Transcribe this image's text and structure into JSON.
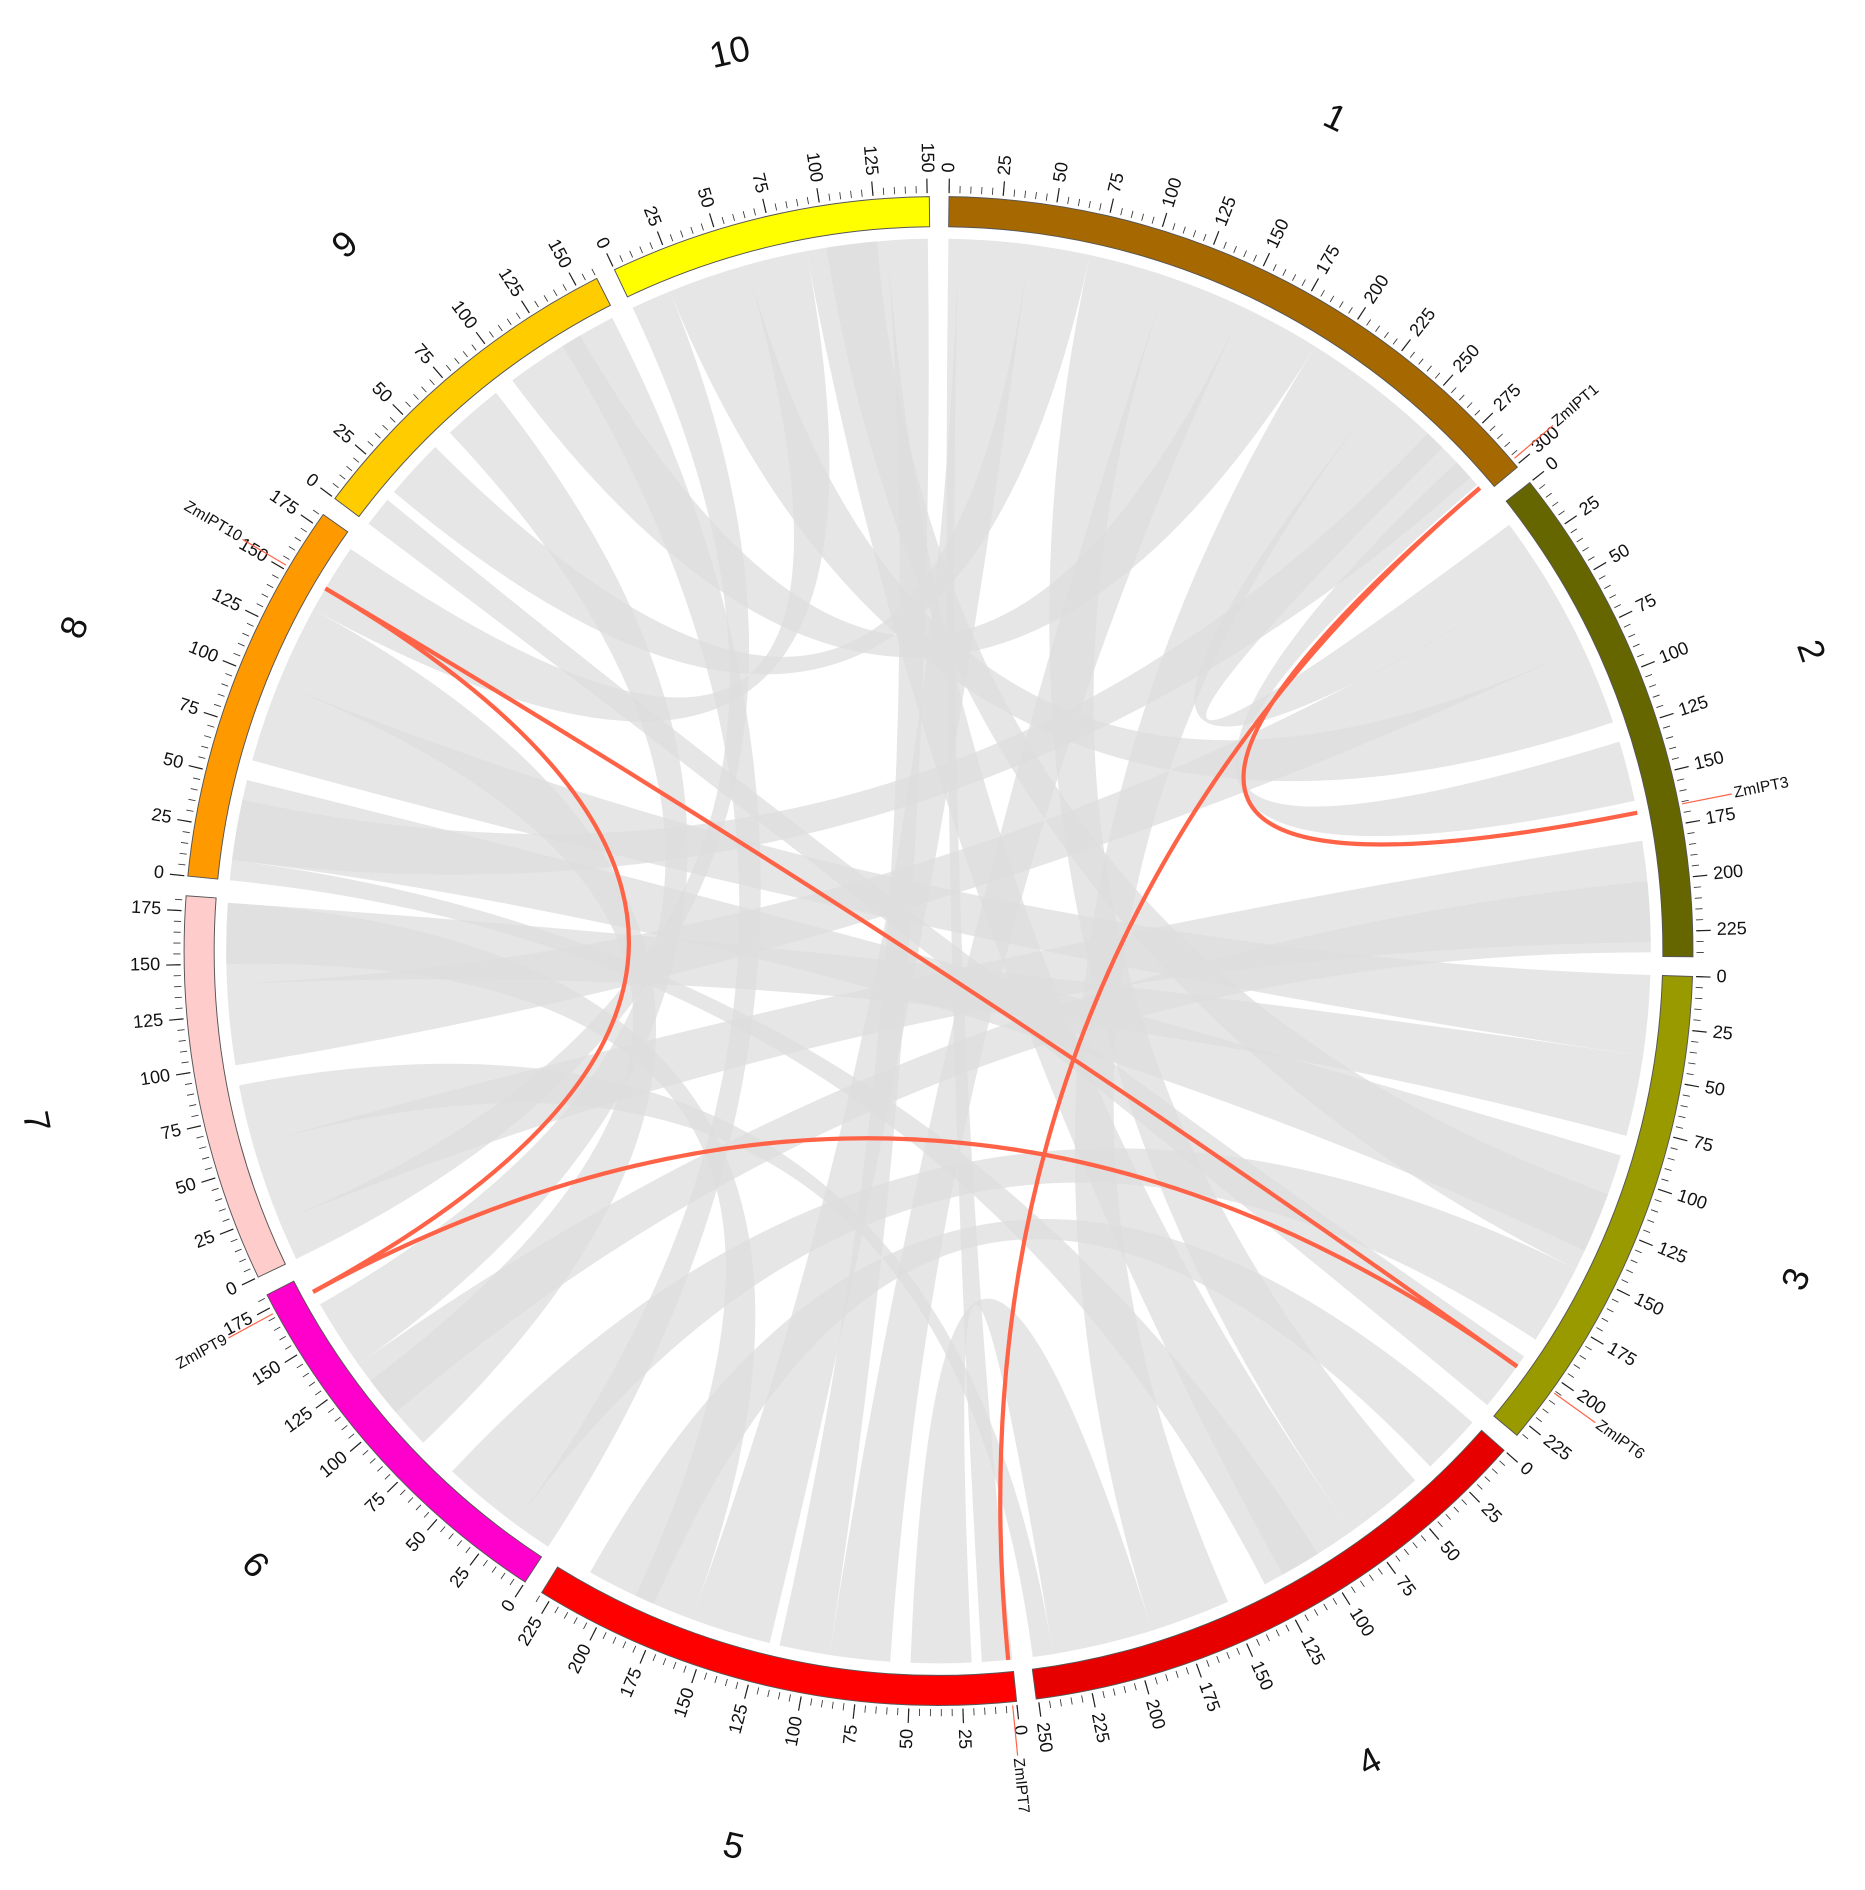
{
  "chart_data": {
    "type": "circos",
    "chromosomes": [
      {
        "name": "1",
        "length": 301,
        "color": "#a66800",
        "ticks": [
          0,
          25,
          50,
          75,
          100,
          125,
          150,
          175,
          200,
          225,
          250,
          275,
          300
        ]
      },
      {
        "name": "2",
        "length": 237,
        "color": "#666600",
        "ticks": [
          0,
          25,
          50,
          75,
          100,
          125,
          150,
          175,
          200,
          225
        ]
      },
      {
        "name": "3",
        "length": 232,
        "color": "#999900",
        "ticks": [
          0,
          25,
          50,
          75,
          100,
          125,
          150,
          175,
          200,
          225
        ]
      },
      {
        "name": "4",
        "length": 251,
        "color": "#e60000",
        "ticks": [
          0,
          25,
          50,
          75,
          100,
          125,
          150,
          175,
          200,
          225,
          250
        ]
      },
      {
        "name": "5",
        "length": 230,
        "color": "#ff0000",
        "ticks": [
          0,
          25,
          50,
          75,
          100,
          125,
          150,
          175,
          200,
          225
        ]
      },
      {
        "name": "6",
        "length": 181,
        "color": "#ff00cc",
        "ticks": [
          0,
          25,
          50,
          75,
          100,
          125,
          150,
          175
        ]
      },
      {
        "name": "7",
        "length": 182,
        "color": "#ffcccc",
        "ticks": [
          0,
          25,
          50,
          75,
          100,
          125,
          150,
          175
        ]
      },
      {
        "name": "8",
        "length": 181,
        "color": "#ff9900",
        "ticks": [
          0,
          25,
          50,
          75,
          100,
          125,
          150,
          175
        ]
      },
      {
        "name": "9",
        "length": 160,
        "color": "#ffcc00",
        "ticks": [
          0,
          25,
          50,
          75,
          100,
          125,
          150
        ]
      },
      {
        "name": "10",
        "length": 151,
        "color": "#ffff00",
        "ticks": [
          0,
          25,
          50,
          75,
          100,
          125,
          150
        ]
      }
    ],
    "minor_tick_step": 5,
    "genes": [
      {
        "name": "ZmIPT1",
        "chromosome": "1",
        "position": 297
      },
      {
        "name": "ZmIPT3",
        "chromosome": "2",
        "position": 166
      },
      {
        "name": "ZmIPT6",
        "chromosome": "3",
        "position": 206
      },
      {
        "name": "ZmIPT7",
        "chromosome": "5",
        "position": 2
      },
      {
        "name": "ZmIPT9",
        "chromosome": "6",
        "position": 172
      },
      {
        "name": "ZmIPT10",
        "chromosome": "8",
        "position": 152
      }
    ],
    "links": [
      [
        0,
        1
      ],
      [
        0,
        3
      ],
      [
        5,
        2
      ],
      [
        5,
        4
      ],
      [
        4,
        2
      ]
    ],
    "link_color": "#ff6347",
    "synteny_color": "#dedede",
    "synteny": [
      [
        "1",
        5,
        40,
        "5",
        120,
        160
      ],
      [
        "1",
        40,
        70,
        "9",
        20,
        50
      ],
      [
        "1",
        70,
        110,
        "4",
        40,
        80
      ],
      [
        "1",
        110,
        150,
        "5",
        60,
        90
      ],
      [
        "1",
        150,
        190,
        "9",
        100,
        140
      ],
      [
        "1",
        190,
        230,
        "4",
        150,
        190
      ],
      [
        "1",
        230,
        270,
        "2",
        10,
        40
      ],
      [
        "2",
        40,
        80,
        "7",
        100,
        140
      ],
      [
        "2",
        80,
        120,
        "10",
        20,
        60
      ],
      [
        "2",
        180,
        230,
        "7",
        20,
        60
      ],
      [
        "3",
        0,
        40,
        "8",
        60,
        100
      ],
      [
        "3",
        40,
        80,
        "7",
        140,
        180
      ],
      [
        "3",
        90,
        140,
        "8",
        10,
        50
      ],
      [
        "3",
        150,
        190,
        "6",
        20,
        60
      ],
      [
        "4",
        0,
        30,
        "5",
        180,
        215
      ],
      [
        "4",
        80,
        120,
        "10",
        90,
        130
      ],
      [
        "4",
        190,
        240,
        "5",
        20,
        50
      ],
      [
        "5",
        90,
        115,
        "10",
        130,
        150
      ],
      [
        "6",
        80,
        120,
        "8",
        100,
        140
      ],
      [
        "6",
        130,
        165,
        "9",
        60,
        90
      ],
      [
        "7",
        0,
        20,
        "10",
        0,
        20
      ],
      [
        "8",
        140,
        175,
        "10",
        60,
        90
      ],
      [
        "9",
        130,
        158,
        "6",
        0,
        20
      ],
      [
        "2",
        130,
        160,
        "1",
        280,
        295
      ],
      [
        "4",
        240,
        250,
        "7",
        60,
        90
      ],
      [
        "3",
        200,
        230,
        "9",
        0,
        15
      ],
      [
        "1",
        260,
        290,
        "8",
        10,
        40
      ],
      [
        "5",
        0,
        15,
        "1",
        0,
        5
      ],
      [
        "2",
        200,
        235,
        "6",
        100,
        130
      ],
      [
        "3",
        110,
        150,
        "10",
        100,
        125
      ],
      [
        "8",
        0,
        10,
        "4",
        100,
        130
      ],
      [
        "7",
        150,
        180,
        "5",
        160,
        190
      ]
    ]
  }
}
